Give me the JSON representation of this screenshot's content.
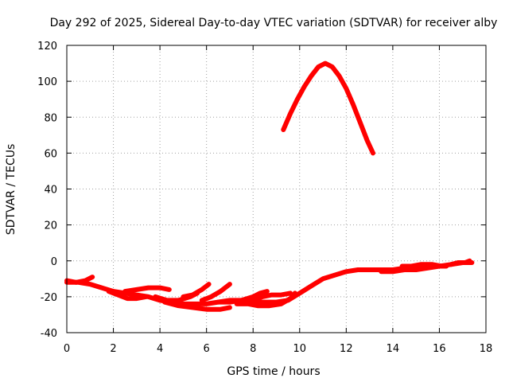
{
  "chart_data": {
    "type": "scatter",
    "title": "Day 292 of 2025, Sidereal Day-to-day VTEC variation (SDTVAR) for receiver alby",
    "xlabel": "GPS time / hours",
    "ylabel": "SDTVAR / TECUs",
    "xlim": [
      0,
      18
    ],
    "ylim": [
      -40,
      120
    ],
    "xticks": [
      0,
      2,
      4,
      6,
      8,
      10,
      12,
      14,
      16,
      18
    ],
    "yticks": [
      -40,
      -20,
      0,
      20,
      40,
      60,
      80,
      100,
      120
    ],
    "grid": true,
    "color": "#ff0000",
    "series": [
      {
        "name": "arc-high",
        "points": [
          [
            9.3,
            73
          ],
          [
            9.6,
            82
          ],
          [
            9.9,
            90
          ],
          [
            10.2,
            97
          ],
          [
            10.5,
            103
          ],
          [
            10.8,
            108
          ],
          [
            11.1,
            110
          ],
          [
            11.4,
            108
          ],
          [
            11.7,
            103
          ],
          [
            12.0,
            96
          ],
          [
            12.3,
            87
          ],
          [
            12.6,
            77
          ],
          [
            12.9,
            67
          ],
          [
            13.15,
            60
          ]
        ]
      },
      {
        "name": "arc-main",
        "points": [
          [
            0.0,
            -12
          ],
          [
            0.5,
            -12
          ],
          [
            1.0,
            -13
          ],
          [
            1.5,
            -15
          ],
          [
            2.0,
            -17
          ],
          [
            2.5,
            -18
          ],
          [
            3.0,
            -19
          ],
          [
            3.5,
            -20
          ],
          [
            4.0,
            -22
          ],
          [
            4.5,
            -23
          ],
          [
            5.0,
            -24
          ],
          [
            5.5,
            -24
          ],
          [
            6.0,
            -24
          ],
          [
            6.5,
            -23
          ],
          [
            7.0,
            -22
          ],
          [
            7.5,
            -22
          ],
          [
            8.0,
            -23
          ],
          [
            8.5,
            -23
          ],
          [
            9.0,
            -23
          ],
          [
            9.5,
            -22
          ],
          [
            10.0,
            -18
          ],
          [
            10.5,
            -14
          ],
          [
            11.0,
            -10
          ],
          [
            11.5,
            -8
          ],
          [
            12.0,
            -6
          ],
          [
            12.5,
            -5
          ],
          [
            13.0,
            -5
          ],
          [
            13.5,
            -5
          ],
          [
            14.0,
            -5
          ],
          [
            14.5,
            -4
          ],
          [
            15.0,
            -4
          ],
          [
            15.5,
            -3
          ],
          [
            16.0,
            -3
          ],
          [
            16.5,
            -2
          ],
          [
            17.0,
            -1
          ],
          [
            17.4,
            -1
          ]
        ]
      },
      {
        "name": "arc-a",
        "points": [
          [
            0.0,
            -11
          ],
          [
            0.4,
            -12
          ],
          [
            0.8,
            -11
          ],
          [
            1.1,
            -9
          ]
        ]
      },
      {
        "name": "arc-b",
        "points": [
          [
            1.8,
            -17
          ],
          [
            2.2,
            -19
          ],
          [
            2.6,
            -21
          ],
          [
            3.0,
            -21
          ],
          [
            3.4,
            -20
          ]
        ]
      },
      {
        "name": "arc-c",
        "points": [
          [
            2.5,
            -17
          ],
          [
            3.0,
            -16
          ],
          [
            3.5,
            -15
          ],
          [
            4.0,
            -15
          ],
          [
            4.4,
            -16
          ]
        ]
      },
      {
        "name": "arc-d",
        "points": [
          [
            3.8,
            -20
          ],
          [
            4.3,
            -22
          ],
          [
            4.8,
            -22
          ],
          [
            5.3,
            -20
          ],
          [
            5.6,
            -18
          ]
        ]
      },
      {
        "name": "arc-e",
        "points": [
          [
            4.2,
            -23
          ],
          [
            4.8,
            -25
          ],
          [
            5.4,
            -26
          ],
          [
            6.0,
            -27
          ],
          [
            6.6,
            -27
          ],
          [
            7.0,
            -26
          ]
        ]
      },
      {
        "name": "arc-f",
        "points": [
          [
            5.0,
            -20
          ],
          [
            5.4,
            -19
          ],
          [
            5.8,
            -16
          ],
          [
            6.1,
            -13
          ]
        ]
      },
      {
        "name": "arc-g",
        "points": [
          [
            5.8,
            -22
          ],
          [
            6.2,
            -20
          ],
          [
            6.6,
            -17
          ],
          [
            7.0,
            -13
          ]
        ]
      },
      {
        "name": "arc-h",
        "points": [
          [
            6.5,
            -23
          ],
          [
            7.0,
            -23
          ],
          [
            7.5,
            -22
          ],
          [
            8.0,
            -20
          ],
          [
            8.3,
            -18
          ],
          [
            8.6,
            -17
          ]
        ]
      },
      {
        "name": "arc-i",
        "points": [
          [
            7.3,
            -24
          ],
          [
            7.8,
            -24
          ],
          [
            8.2,
            -25
          ],
          [
            8.7,
            -25
          ],
          [
            9.2,
            -24
          ],
          [
            9.6,
            -21
          ],
          [
            9.8,
            -18
          ]
        ]
      },
      {
        "name": "arc-j",
        "points": [
          [
            8.0,
            -22
          ],
          [
            8.4,
            -20
          ],
          [
            8.8,
            -19
          ],
          [
            9.2,
            -19
          ],
          [
            9.6,
            -18
          ]
        ]
      },
      {
        "name": "arc-k",
        "points": [
          [
            13.5,
            -6
          ],
          [
            14.0,
            -6
          ],
          [
            14.5,
            -5
          ],
          [
            15.0,
            -5
          ],
          [
            15.5,
            -4
          ],
          [
            16.0,
            -3
          ],
          [
            16.3,
            -3
          ]
        ]
      },
      {
        "name": "arc-l",
        "points": [
          [
            14.4,
            -3
          ],
          [
            14.8,
            -3
          ],
          [
            15.2,
            -2
          ],
          [
            15.7,
            -2
          ],
          [
            16.1,
            -3
          ]
        ]
      },
      {
        "name": "arc-m",
        "points": [
          [
            16.5,
            -2
          ],
          [
            16.8,
            -1
          ],
          [
            17.1,
            -1
          ],
          [
            17.3,
            0
          ]
        ]
      }
    ]
  }
}
